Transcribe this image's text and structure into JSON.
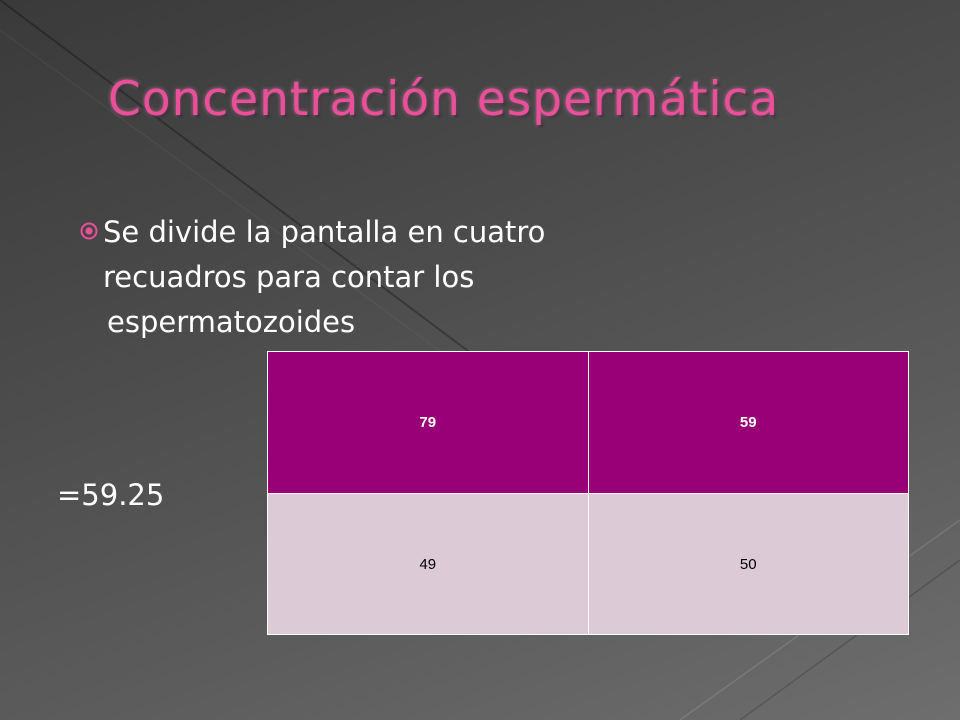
{
  "slide": {
    "title": "Concentración espermática",
    "bullet": {
      "icon": "circle-dot-bullet-icon",
      "lines": [
        "Se divide la pantalla en cuatro",
        "recuadros para contar los",
        "espermatozoides"
      ]
    },
    "result": "=59.25",
    "count_table": {
      "header_row": [
        "79",
        "59"
      ],
      "body_row": [
        "49",
        "50"
      ]
    },
    "colors": {
      "title": "#ea4f9a",
      "bullet_icon": "#ea4f9a",
      "table_header": "#990077",
      "table_body": "#dccbd6",
      "background": "#4a4a4a"
    }
  }
}
